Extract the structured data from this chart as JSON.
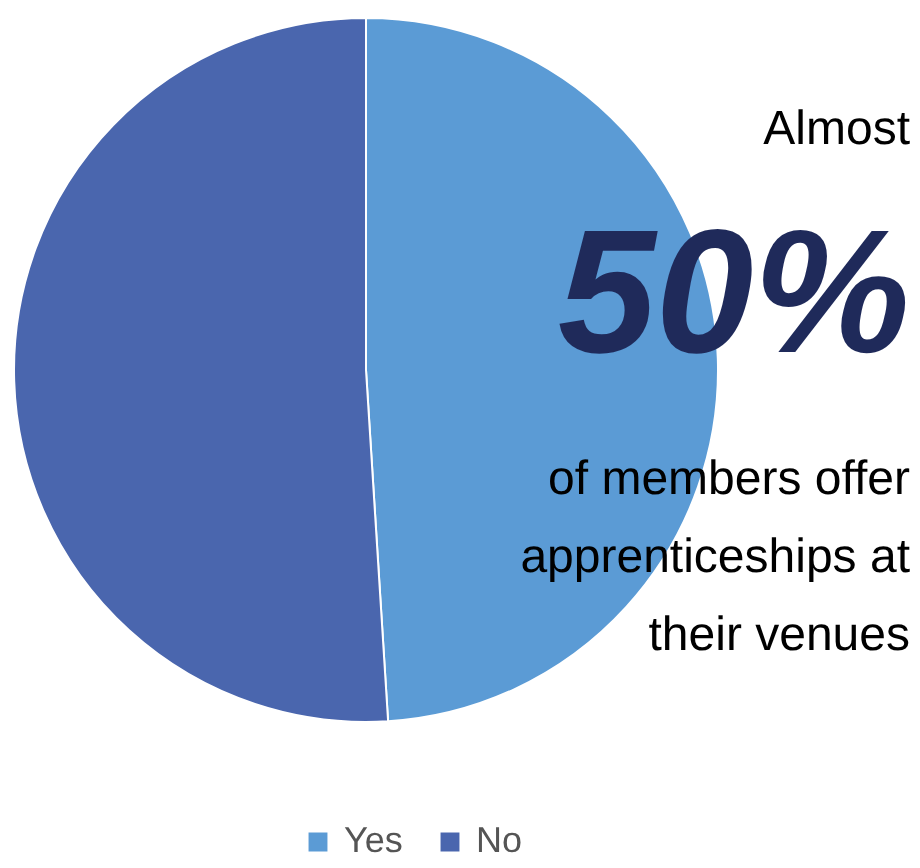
{
  "chart_data": {
    "type": "pie",
    "categories": [
      "Yes",
      "No"
    ],
    "values": [
      49,
      51
    ],
    "colors": [
      "#5b9bd5",
      "#4a66ae"
    ],
    "legend": "bottom",
    "annotations": [
      "Almost",
      "50%",
      "of members offer apprenticeships at their venues"
    ]
  }
}
